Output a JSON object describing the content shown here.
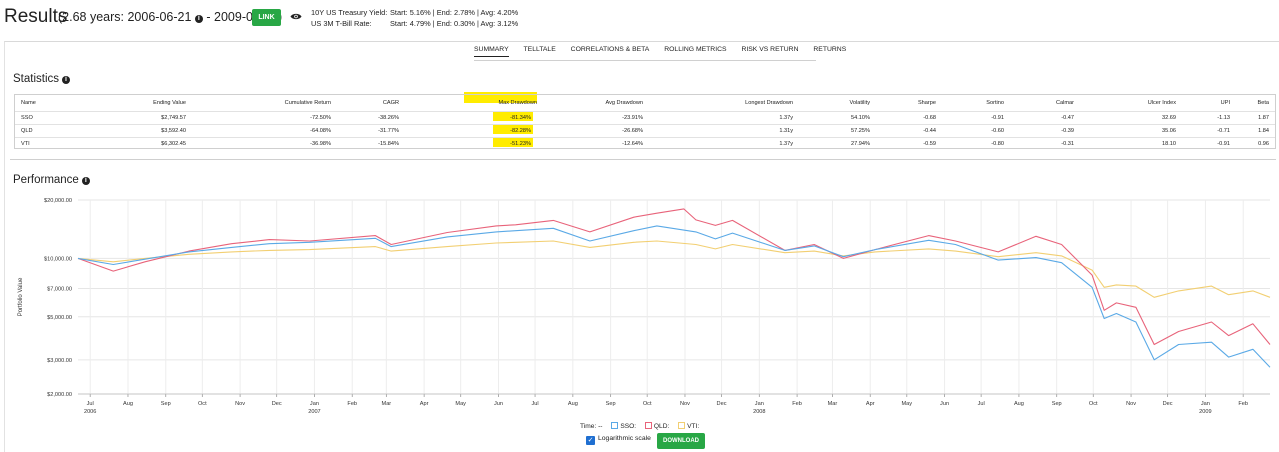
{
  "header": {
    "title": "Results",
    "range_text": "(2.68 years: 2006-06-21",
    "range_end": " - 2009-02-23)",
    "link_label": "LINK",
    "yields": [
      {
        "label": "10Y US Treasury Yield:",
        "values": "Start: 5.16%  |  End: 2.78%  |  Avg: 4.20%"
      },
      {
        "label": "US 3M T-Bill Rate:",
        "values": "Start: 4.79%  |  End: 0.30%  |  Avg: 3.12%"
      }
    ]
  },
  "tabs": [
    "SUMMARY",
    "TELLTALE",
    "CORRELATIONS & BETA",
    "ROLLING METRICS",
    "RISK VS RETURN",
    "RETURNS"
  ],
  "active_tab": "SUMMARY",
  "statistics": {
    "title": "Statistics",
    "columns": [
      "Name",
      "Ending Value",
      "Cumulative Return",
      "CAGR",
      "Max Drawdown",
      "Avg Drawdown",
      "Longest Drawdown",
      "Volatility",
      "Sharpe",
      "Sortino",
      "Calmar",
      "Ulcer Index",
      "UPI",
      "Beta"
    ],
    "rows": [
      [
        "SSO",
        "$2,749.57",
        "-72.50%",
        "-38.26%",
        "-81.34%",
        "-23.91%",
        "1.37y",
        "54.10%",
        "-0.68",
        "-0.91",
        "-0.47",
        "32.69",
        "-1.13",
        "1.87"
      ],
      [
        "QLD",
        "$3,592.40",
        "-64.08%",
        "-31.77%",
        "-82.28%",
        "-26.68%",
        "1.31y",
        "57.25%",
        "-0.44",
        "-0.60",
        "-0.39",
        "35.06",
        "-0.71",
        "1.84"
      ],
      [
        "VTI",
        "$6,302.45",
        "-36.98%",
        "-15.84%",
        "-51.23%",
        "-12.64%",
        "1.37y",
        "27.94%",
        "-0.59",
        "-0.80",
        "-0.31",
        "18.10",
        "-0.91",
        "0.96"
      ]
    ],
    "highlight_color": "#ffec00"
  },
  "performance": {
    "title": "Performance",
    "log_scale_label": "Logarithmic scale",
    "download_label": "DOWNLOAD",
    "legend_time_label": "Time: --",
    "legend": [
      {
        "name": "SSO:",
        "color": "#5aa9e6"
      },
      {
        "name": "QLD:",
        "color": "#e8637a"
      },
      {
        "name": "VTI:",
        "color": "#f2cf72"
      }
    ]
  },
  "chart_data": {
    "type": "line",
    "ylabel": "Portfolio Value",
    "yscale": "log",
    "ylim": [
      2000,
      20000
    ],
    "yticks": [
      {
        "v": 20000,
        "label": "$20,000.00"
      },
      {
        "v": 10000,
        "label": "$10,000.00"
      },
      {
        "v": 7000,
        "label": "$7,000.00"
      },
      {
        "v": 5000,
        "label": "$5,000.00"
      },
      {
        "v": 3000,
        "label": "$3,000.00"
      },
      {
        "v": 2000,
        "label": "$2,000.00"
      }
    ],
    "xlim": [
      "2006-06-21",
      "2009-02-23"
    ],
    "xticks": [
      {
        "d": "2006-07-01",
        "label": "Jul",
        "year": "2006"
      },
      {
        "d": "2006-08-01",
        "label": "Aug"
      },
      {
        "d": "2006-09-01",
        "label": "Sep"
      },
      {
        "d": "2006-10-01",
        "label": "Oct"
      },
      {
        "d": "2006-11-01",
        "label": "Nov"
      },
      {
        "d": "2006-12-01",
        "label": "Dec"
      },
      {
        "d": "2007-01-01",
        "label": "Jan",
        "year": "2007"
      },
      {
        "d": "2007-02-01",
        "label": "Feb"
      },
      {
        "d": "2007-03-01",
        "label": "Mar"
      },
      {
        "d": "2007-04-01",
        "label": "Apr"
      },
      {
        "d": "2007-05-01",
        "label": "May"
      },
      {
        "d": "2007-06-01",
        "label": "Jun"
      },
      {
        "d": "2007-07-01",
        "label": "Jul"
      },
      {
        "d": "2007-08-01",
        "label": "Aug"
      },
      {
        "d": "2007-09-01",
        "label": "Sep"
      },
      {
        "d": "2007-10-01",
        "label": "Oct"
      },
      {
        "d": "2007-11-01",
        "label": "Nov"
      },
      {
        "d": "2007-12-01",
        "label": "Dec"
      },
      {
        "d": "2008-01-01",
        "label": "Jan",
        "year": "2008"
      },
      {
        "d": "2008-02-01",
        "label": "Feb"
      },
      {
        "d": "2008-03-01",
        "label": "Mar"
      },
      {
        "d": "2008-04-01",
        "label": "Apr"
      },
      {
        "d": "2008-05-01",
        "label": "May"
      },
      {
        "d": "2008-06-01",
        "label": "Jun"
      },
      {
        "d": "2008-07-01",
        "label": "Jul"
      },
      {
        "d": "2008-08-01",
        "label": "Aug"
      },
      {
        "d": "2008-09-01",
        "label": "Sep"
      },
      {
        "d": "2008-10-01",
        "label": "Oct"
      },
      {
        "d": "2008-11-01",
        "label": "Nov"
      },
      {
        "d": "2008-12-01",
        "label": "Dec"
      },
      {
        "d": "2009-01-01",
        "label": "Jan",
        "year": "2009"
      },
      {
        "d": "2009-02-01",
        "label": "Feb"
      }
    ],
    "grid": true,
    "series": [
      {
        "name": "SSO",
        "color": "#5aa9e6",
        "points": [
          [
            "2006-06-21",
            10000
          ],
          [
            "2006-07-20",
            9300
          ],
          [
            "2006-08-15",
            9900
          ],
          [
            "2006-09-20",
            10800
          ],
          [
            "2006-10-25",
            11400
          ],
          [
            "2006-11-25",
            11900
          ],
          [
            "2006-12-28",
            12100
          ],
          [
            "2007-02-20",
            12700
          ],
          [
            "2007-03-05",
            11500
          ],
          [
            "2007-04-20",
            12900
          ],
          [
            "2007-05-30",
            13700
          ],
          [
            "2007-06-15",
            13900
          ],
          [
            "2007-07-16",
            14300
          ],
          [
            "2007-08-15",
            12300
          ],
          [
            "2007-09-20",
            13900
          ],
          [
            "2007-10-09",
            14700
          ],
          [
            "2007-11-10",
            13700
          ],
          [
            "2007-11-26",
            12600
          ],
          [
            "2007-12-10",
            13500
          ],
          [
            "2008-01-22",
            11000
          ],
          [
            "2008-02-15",
            11600
          ],
          [
            "2008-03-10",
            10200
          ],
          [
            "2008-04-05",
            11100
          ],
          [
            "2008-05-19",
            12400
          ],
          [
            "2008-06-10",
            11800
          ],
          [
            "2008-07-15",
            9800
          ],
          [
            "2008-08-15",
            10100
          ],
          [
            "2008-09-05",
            9500
          ],
          [
            "2008-09-30",
            7100
          ],
          [
            "2008-10-10",
            4900
          ],
          [
            "2008-10-20",
            5200
          ],
          [
            "2008-11-05",
            4700
          ],
          [
            "2008-11-20",
            3000
          ],
          [
            "2008-12-10",
            3600
          ],
          [
            "2009-01-06",
            3700
          ],
          [
            "2009-01-20",
            3100
          ],
          [
            "2009-02-09",
            3400
          ],
          [
            "2009-02-23",
            2750
          ]
        ]
      },
      {
        "name": "QLD",
        "color": "#e8637a",
        "points": [
          [
            "2006-06-21",
            10000
          ],
          [
            "2006-07-20",
            8600
          ],
          [
            "2006-08-15",
            9600
          ],
          [
            "2006-09-20",
            10900
          ],
          [
            "2006-10-25",
            11900
          ],
          [
            "2006-11-25",
            12500
          ],
          [
            "2006-12-28",
            12300
          ],
          [
            "2007-02-20",
            13100
          ],
          [
            "2007-03-05",
            11800
          ],
          [
            "2007-04-20",
            13600
          ],
          [
            "2007-05-30",
            14700
          ],
          [
            "2007-06-15",
            14900
          ],
          [
            "2007-07-16",
            15700
          ],
          [
            "2007-08-15",
            13700
          ],
          [
            "2007-09-20",
            16300
          ],
          [
            "2007-10-09",
            17100
          ],
          [
            "2007-10-31",
            18000
          ],
          [
            "2007-11-10",
            15800
          ],
          [
            "2007-11-26",
            14800
          ],
          [
            "2007-12-10",
            15700
          ],
          [
            "2008-01-22",
            11000
          ],
          [
            "2008-02-15",
            11800
          ],
          [
            "2008-03-10",
            10000
          ],
          [
            "2008-04-05",
            11100
          ],
          [
            "2008-05-19",
            13100
          ],
          [
            "2008-06-10",
            12300
          ],
          [
            "2008-07-15",
            10800
          ],
          [
            "2008-08-15",
            13000
          ],
          [
            "2008-09-05",
            11800
          ],
          [
            "2008-09-30",
            8200
          ],
          [
            "2008-10-10",
            5400
          ],
          [
            "2008-10-20",
            5900
          ],
          [
            "2008-11-05",
            5600
          ],
          [
            "2008-11-20",
            3600
          ],
          [
            "2008-12-10",
            4200
          ],
          [
            "2009-01-06",
            4700
          ],
          [
            "2009-01-20",
            4000
          ],
          [
            "2009-02-09",
            4600
          ],
          [
            "2009-02-23",
            3600
          ]
        ]
      },
      {
        "name": "VTI",
        "color": "#f2cf72",
        "points": [
          [
            "2006-06-21",
            10000
          ],
          [
            "2006-07-20",
            9600
          ],
          [
            "2006-08-15",
            10000
          ],
          [
            "2006-09-20",
            10500
          ],
          [
            "2006-10-25",
            10800
          ],
          [
            "2006-11-25",
            11000
          ],
          [
            "2006-12-28",
            11100
          ],
          [
            "2007-02-20",
            11500
          ],
          [
            "2007-03-05",
            10900
          ],
          [
            "2007-04-20",
            11500
          ],
          [
            "2007-05-30",
            12000
          ],
          [
            "2007-06-15",
            12100
          ],
          [
            "2007-07-16",
            12300
          ],
          [
            "2007-08-15",
            11400
          ],
          [
            "2007-09-20",
            12100
          ],
          [
            "2007-10-09",
            12300
          ],
          [
            "2007-11-10",
            11800
          ],
          [
            "2007-11-26",
            11200
          ],
          [
            "2007-12-10",
            11800
          ],
          [
            "2008-01-22",
            10700
          ],
          [
            "2008-02-15",
            10900
          ],
          [
            "2008-03-10",
            10300
          ],
          [
            "2008-04-05",
            10800
          ],
          [
            "2008-05-19",
            11200
          ],
          [
            "2008-06-10",
            10900
          ],
          [
            "2008-07-15",
            10200
          ],
          [
            "2008-08-15",
            10700
          ],
          [
            "2008-09-05",
            10300
          ],
          [
            "2008-09-30",
            8700
          ],
          [
            "2008-10-10",
            7100
          ],
          [
            "2008-10-20",
            7300
          ],
          [
            "2008-11-05",
            7200
          ],
          [
            "2008-11-20",
            6300
          ],
          [
            "2008-12-10",
            6800
          ],
          [
            "2009-01-06",
            7200
          ],
          [
            "2009-01-20",
            6500
          ],
          [
            "2009-02-09",
            6800
          ],
          [
            "2009-02-23",
            6300
          ]
        ]
      }
    ]
  }
}
